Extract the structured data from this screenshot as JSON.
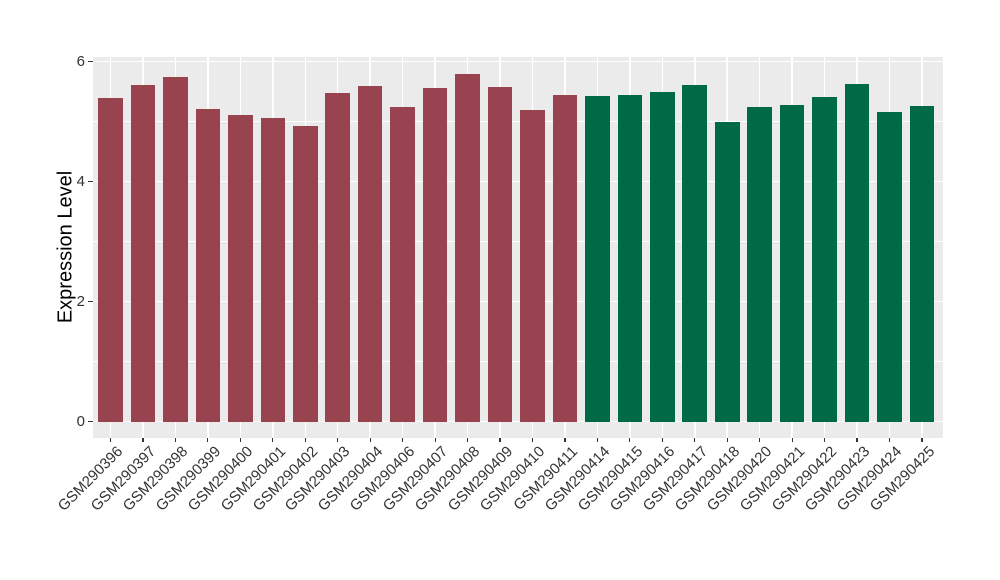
{
  "figure": {
    "background_color": "#ffffff",
    "panel_background_color": "#ebebeb",
    "gridline_color": "#ffffff",
    "tick_mark_color": "#333333",
    "axis_text_color": "#333333",
    "axis_title_color": "#000000"
  },
  "chart_data": {
    "type": "bar",
    "title": "",
    "xlabel": "",
    "ylabel": "Expression Level",
    "ylim": [
      0,
      6.06
    ],
    "yticks_major": [
      0,
      2,
      4,
      6
    ],
    "yticks_minor": [
      1,
      3,
      5
    ],
    "grid": "on (white major+minor horizontal lines, vertical line at each category center, ggplot-style gray panel)",
    "legend_position": "none",
    "x_tick_rotation_deg": 45,
    "categories": [
      "GSM290396",
      "GSM290397",
      "GSM290398",
      "GSM290399",
      "GSM290400",
      "GSM290401",
      "GSM290402",
      "GSM290403",
      "GSM290404",
      "GSM290406",
      "GSM290407",
      "GSM290408",
      "GSM290409",
      "GSM290410",
      "GSM290411",
      "GSM290414",
      "GSM290415",
      "GSM290416",
      "GSM290417",
      "GSM290418",
      "GSM290420",
      "GSM290421",
      "GSM290422",
      "GSM290423",
      "GSM290424",
      "GSM290425"
    ],
    "values": [
      5.4,
      5.62,
      5.75,
      5.22,
      5.12,
      5.07,
      4.93,
      5.48,
      5.6,
      5.25,
      5.56,
      5.8,
      5.58,
      5.2,
      5.45,
      5.43,
      5.44,
      5.5,
      5.62,
      5.0,
      5.24,
      5.28,
      5.42,
      5.63,
      5.17,
      5.26
    ],
    "bar_groups": [
      "A",
      "A",
      "A",
      "A",
      "A",
      "A",
      "A",
      "A",
      "A",
      "A",
      "A",
      "A",
      "A",
      "A",
      "A",
      "B",
      "B",
      "B",
      "B",
      "B",
      "B",
      "B",
      "B",
      "B",
      "B",
      "B"
    ],
    "group_colors": {
      "A": "#9a4350",
      "B": "#006a47"
    }
  }
}
